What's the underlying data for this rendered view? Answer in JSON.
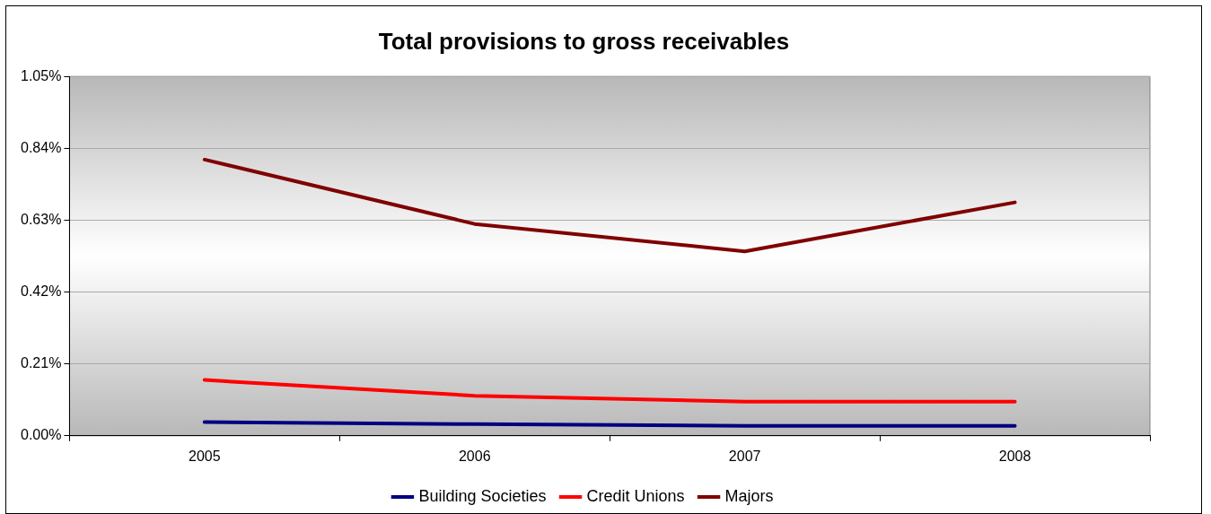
{
  "chart_data": {
    "type": "line",
    "title": "Total provisions to gross receivables",
    "categories": [
      "2005",
      "2006",
      "2007",
      "2008"
    ],
    "series": [
      {
        "name": "Building Societies",
        "color": "#000080",
        "values": [
          0.04,
          0.034,
          0.029,
          0.029
        ]
      },
      {
        "name": "Credit Unions",
        "color": "#ff0000",
        "values": [
          0.163,
          0.117,
          0.1,
          0.1
        ]
      },
      {
        "name": "Majors",
        "color": "#800000",
        "values": [
          0.807,
          0.619,
          0.539,
          0.682
        ]
      }
    ],
    "ylim": [
      0,
      1.05
    ],
    "yticks": [
      {
        "value": 0,
        "label": "0.00%"
      },
      {
        "value": 0.21,
        "label": "0.21%"
      },
      {
        "value": 0.42,
        "label": "0.42%"
      },
      {
        "value": 0.63,
        "label": "0.63%"
      },
      {
        "value": 0.84,
        "label": "0.84%"
      },
      {
        "value": 1.05,
        "label": "1.05%"
      }
    ],
    "grid": "y",
    "legend": "bottom",
    "marker": "none",
    "line_style": "solid"
  }
}
